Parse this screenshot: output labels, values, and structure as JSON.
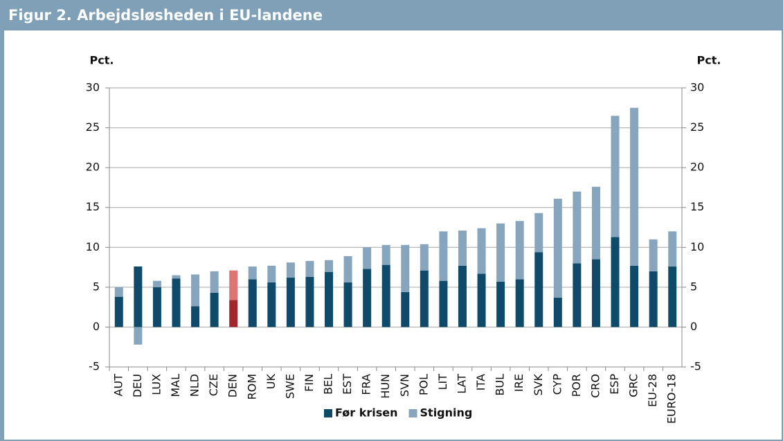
{
  "chart_data": {
    "type": "stacked_bar",
    "title": "Figur 2. Arbejdsløsheden i EU-landene",
    "ylabel": "Pct.",
    "y2label": "Pct.",
    "categories": [
      "AUT",
      "DEU",
      "LUX",
      "MAL",
      "NLD",
      "CZE",
      "DEN",
      "ROM",
      "UK",
      "SWE",
      "FIN",
      "BEL",
      "EST",
      "FRA",
      "HUN",
      "SVN",
      "POL",
      "LIT",
      "LAT",
      "ITA",
      "BUL",
      "IRE",
      "SVK",
      "CYP",
      "POR",
      "CRO",
      "ESP",
      "GRC",
      "EU-28",
      "EURO-18"
    ],
    "highlight_category": "DEN",
    "series": [
      {
        "name": "Før krisen",
        "color": "#0f4a6b",
        "highlight_color": "#a3262b",
        "values": [
          3.8,
          7.6,
          5.0,
          6.1,
          2.6,
          4.3,
          3.4,
          6.0,
          5.6,
          6.2,
          6.3,
          6.9,
          5.6,
          7.3,
          7.8,
          4.4,
          7.1,
          5.8,
          7.7,
          6.7,
          5.7,
          6.0,
          9.4,
          3.7,
          8.0,
          8.5,
          11.3,
          7.7,
          7.0,
          7.6
        ]
      },
      {
        "name": "Stigning",
        "color": "#87a6bd",
        "highlight_color": "#e07474",
        "values": [
          1.2,
          -2.2,
          0.8,
          0.4,
          4.0,
          2.7,
          3.7,
          1.6,
          2.1,
          1.9,
          2.0,
          1.5,
          3.3,
          2.7,
          2.5,
          5.9,
          3.3,
          6.2,
          4.4,
          5.7,
          7.3,
          7.3,
          4.9,
          12.4,
          9.0,
          9.1,
          15.2,
          19.8,
          4.0,
          4.4
        ]
      }
    ],
    "ylim": [
      -5,
      30
    ],
    "yticks": [
      -5,
      0,
      5,
      10,
      15,
      20,
      25,
      30
    ],
    "y2lim": [
      -5,
      30
    ],
    "y2ticks": [
      -5,
      0,
      5,
      10,
      15,
      20,
      25,
      30
    ],
    "grid": true,
    "legend": "bottom"
  }
}
